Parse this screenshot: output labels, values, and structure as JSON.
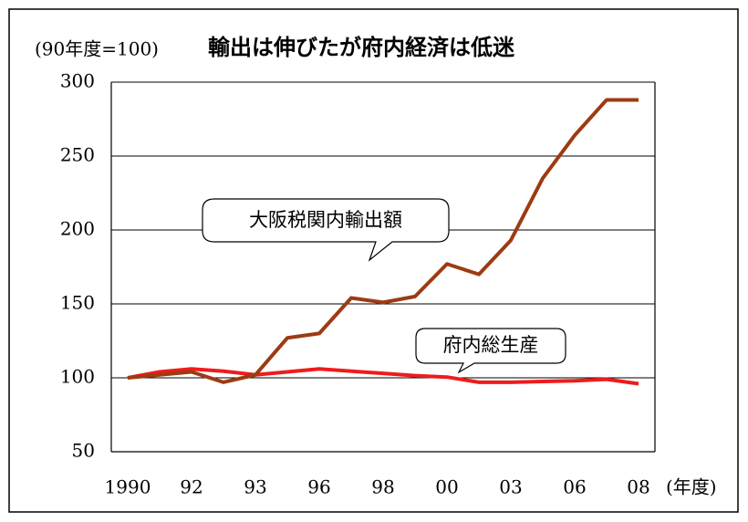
{
  "chart_data": {
    "type": "line",
    "title": "輸出は伸びたが府内経済は低迷",
    "y_unit_label": "(90年度=100)",
    "x_unit_label": "(年度)",
    "categories": [
      "1990",
      null,
      "92",
      null,
      "93",
      null,
      "96",
      null,
      "98",
      null,
      "00",
      null,
      "03",
      null,
      "06",
      null,
      "08"
    ],
    "series": [
      {
        "name": "大阪税関内輸出額",
        "color": "#9c3b12",
        "values": [
          100,
          102,
          104,
          97,
          102,
          127,
          130,
          154,
          151,
          155,
          177,
          170,
          193,
          235,
          264,
          288,
          288
        ]
      },
      {
        "name": "府内総生産",
        "color": "#ee1c1c",
        "values": [
          100,
          104,
          106,
          104.5,
          102,
          104,
          106,
          104.5,
          103,
          101.5,
          100.5,
          97,
          97,
          97.5,
          98,
          99,
          96
        ]
      }
    ],
    "ylim": [
      50,
      300
    ],
    "yticks": [
      50,
      100,
      150,
      200,
      250,
      300
    ],
    "grid": true
  }
}
